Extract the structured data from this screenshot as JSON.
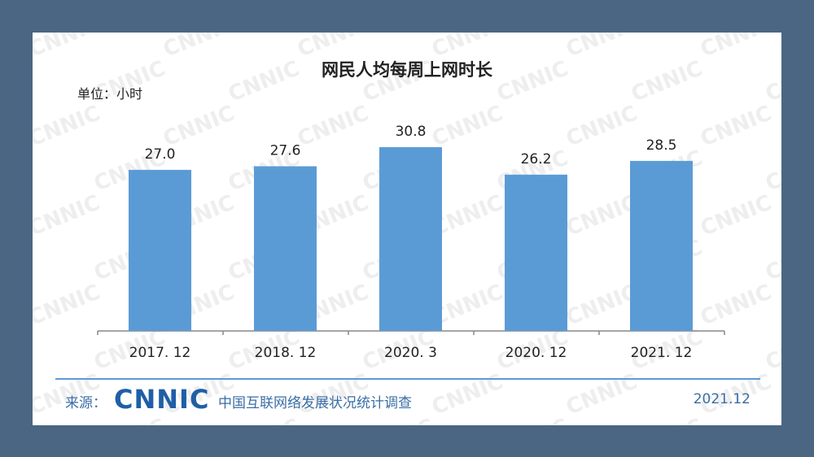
{
  "title": "网民人均每周上网时长",
  "unit": "单位：小时",
  "watermark_text": "CNNIC",
  "footer": {
    "source_label": "来源：",
    "logo_text": "CNNIC",
    "source_name": "中国互联网络发展状况统计调查",
    "date": "2021.12"
  },
  "colors": {
    "bar": "#5b9bd5",
    "background": "#4a6682",
    "accent": "#3a6ea5"
  },
  "chart_data": {
    "type": "bar",
    "title": "网民人均每周上网时长",
    "ylabel": "单位：小时",
    "categories": [
      "2017. 12",
      "2018. 12",
      "2020. 3",
      "2020. 12",
      "2021. 12"
    ],
    "values": [
      27.0,
      27.6,
      30.8,
      26.2,
      28.5
    ],
    "value_labels": [
      "27.0",
      "27.6",
      "30.8",
      "26.2",
      "28.5"
    ],
    "grid": false,
    "legend": "none"
  }
}
